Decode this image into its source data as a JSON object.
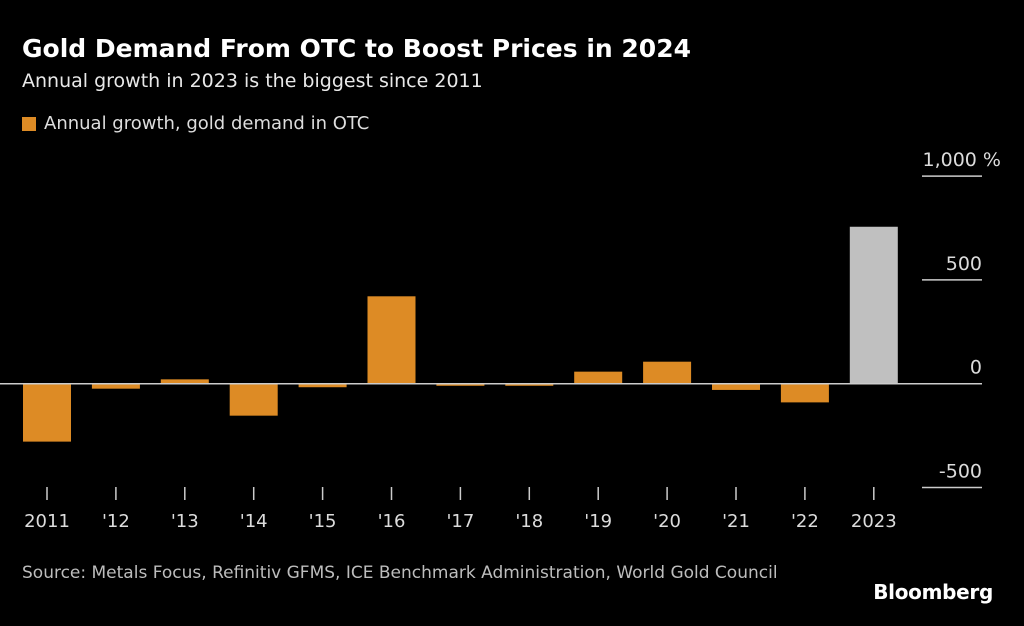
{
  "title": "Gold Demand From OTC to Boost Prices in 2024",
  "subtitle": "Annual growth in 2023 is the biggest since 2011",
  "source": "Source: Metals Focus, Refinitiv GFMS, ICE Benchmark Administration, World Gold Council",
  "brand": "Bloomberg",
  "colors": {
    "bar": "#dd8b25",
    "highlight": "#c0c0c0",
    "axis": "#cccccc",
    "background": "#000000"
  },
  "chart_data": {
    "type": "bar",
    "title": "Gold Demand From OTC to Boost Prices in 2024",
    "subtitle": "Annual growth in 2023 is the biggest since 2011",
    "legend": {
      "entries": [
        "Annual growth, gold demand in OTC"
      ],
      "placement": "top-left"
    },
    "categories": [
      "2011",
      "'12",
      "'13",
      "'14",
      "'15",
      "'16",
      "'17",
      "'18",
      "'19",
      "'20",
      "'21",
      "'22",
      "2023"
    ],
    "series": [
      {
        "name": "Annual growth, gold demand in OTC",
        "values": [
          -279,
          -24,
          21,
          -154,
          -17,
          421,
          -10,
          -10,
          58,
          106,
          -30,
          -90,
          756
        ]
      }
    ],
    "highlight_category": "2023",
    "ylim": [
      -500,
      1000
    ],
    "yticks": [
      1000,
      500,
      0,
      -500
    ],
    "ytick_labels": [
      "1,000 %",
      "500",
      "0",
      "-500"
    ],
    "y_axis_position": "right",
    "grid": false
  }
}
